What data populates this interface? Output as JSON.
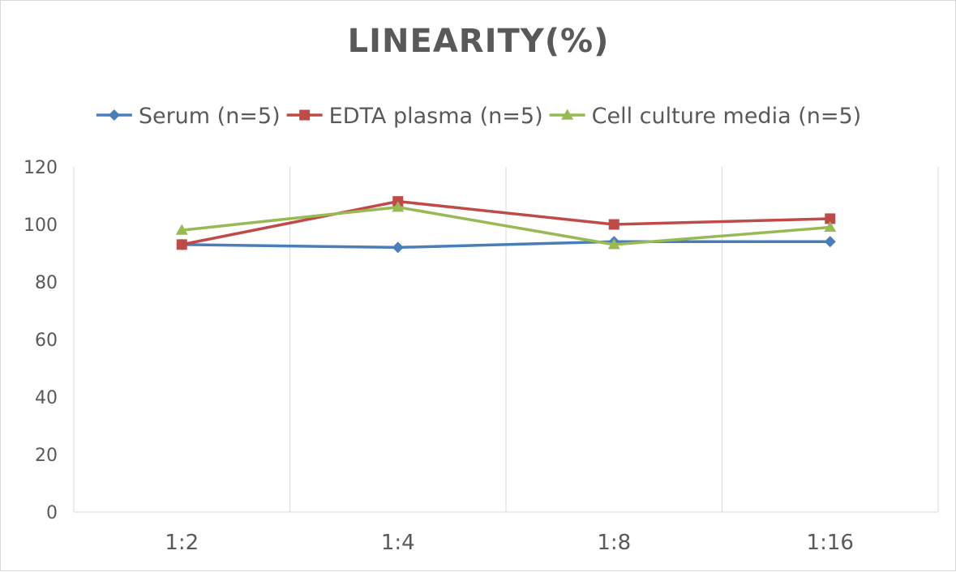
{
  "chart_data": {
    "type": "line",
    "title": "LINEARITY(%)",
    "xlabel": "",
    "ylabel": "",
    "categories": [
      "1:2",
      "1:4",
      "1:8",
      "1:16"
    ],
    "ylim": [
      0,
      120
    ],
    "yticks": [
      "0",
      "20",
      "40",
      "60",
      "80",
      "100",
      "120"
    ],
    "grid": "vertical",
    "legend_position": "top",
    "series": [
      {
        "name": "Serum (n=5)",
        "values": [
          93,
          92,
          94,
          94
        ],
        "color": "#4a7ebb",
        "marker": "diamond"
      },
      {
        "name": "EDTA plasma (n=5)",
        "values": [
          93,
          108,
          100,
          102
        ],
        "color": "#be4b48",
        "marker": "square"
      },
      {
        "name": "Cell culture media (n=5)",
        "values": [
          98,
          106,
          93,
          99
        ],
        "color": "#98b954",
        "marker": "triangle"
      }
    ]
  }
}
